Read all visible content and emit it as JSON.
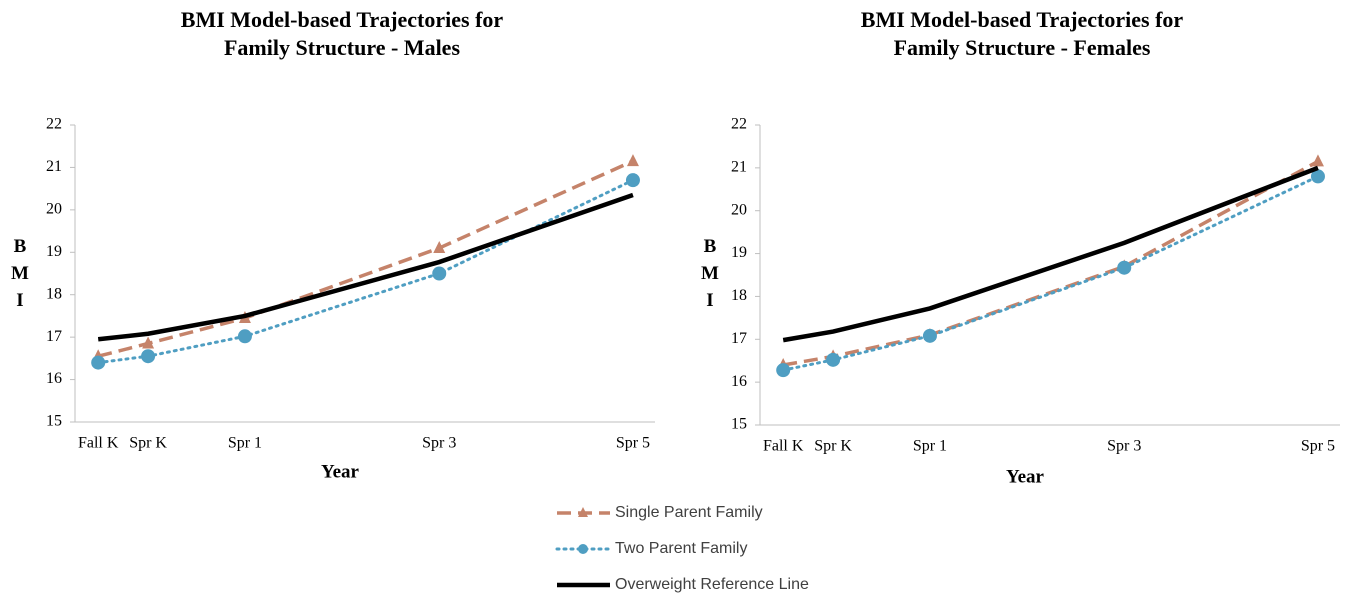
{
  "chart_data": [
    {
      "type": "line",
      "title": "BMI Model-based Trajectories for Family Structure - Males",
      "x_label": "Year",
      "y_label": "BMI",
      "categories": [
        "Fall K",
        "Spr K",
        "Spr 1",
        "Spr 3",
        "Spr 5"
      ],
      "ylim": [
        15,
        22
      ],
      "yticks": [
        15,
        16,
        17,
        18,
        19,
        20,
        21,
        22
      ],
      "series": [
        {
          "name": "Single Parent Family",
          "color": "#c5836a",
          "style": "dashed",
          "marker": "triangle",
          "values": [
            16.55,
            16.85,
            17.45,
            19.1,
            21.15
          ]
        },
        {
          "name": "Two Parent Family",
          "color": "#4f9ec2",
          "style": "dotted",
          "marker": "circle",
          "values": [
            16.4,
            16.55,
            17.02,
            18.5,
            20.7
          ]
        },
        {
          "name": "Overweight Reference Line",
          "color": "#000000",
          "style": "solid",
          "marker": "none",
          "values": [
            16.95,
            17.08,
            17.5,
            18.77,
            20.35
          ]
        }
      ]
    },
    {
      "type": "line",
      "title": "BMI Model-based Trajectories for Family Structure - Females",
      "x_label": "Year",
      "y_label": "BMI",
      "categories": [
        "Fall K",
        "Spr K",
        "Spr 1",
        "Spr 3",
        "Spr 5"
      ],
      "ylim": [
        15,
        22
      ],
      "yticks": [
        15,
        16,
        17,
        18,
        19,
        20,
        21,
        22
      ],
      "series": [
        {
          "color": "#c5836a",
          "style": "dashed",
          "marker": "triangle",
          "values": [
            16.4,
            16.6,
            17.1,
            18.7,
            21.15
          ]
        },
        {
          "color": "#4f9ec2",
          "style": "dotted",
          "marker": "circle",
          "values": [
            16.28,
            16.52,
            17.08,
            18.67,
            20.8
          ]
        },
        {
          "color": "#000000",
          "style": "solid",
          "marker": "none",
          "values": [
            16.98,
            17.18,
            17.72,
            19.25,
            21.0
          ]
        }
      ]
    }
  ]
}
